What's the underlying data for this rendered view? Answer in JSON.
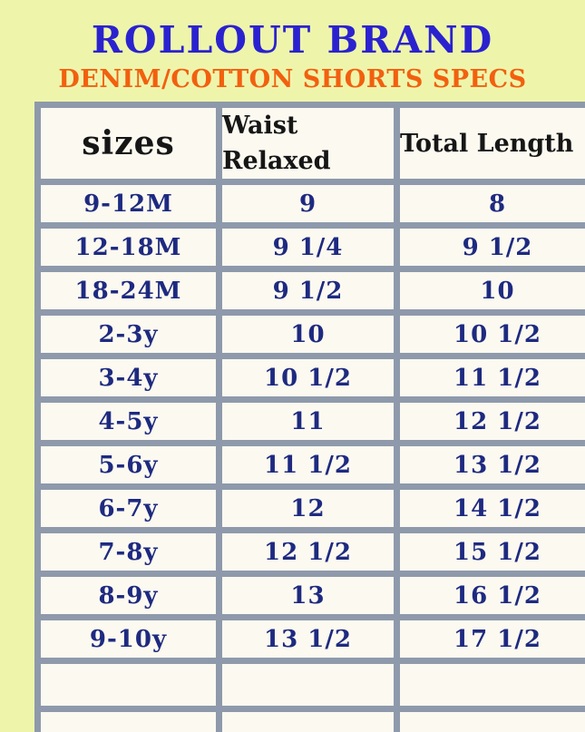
{
  "header": {
    "title": "ROLLOUT BRAND",
    "subtitle": "DENIM/COTTON SHORTS SPECS"
  },
  "colors": {
    "background": "#eef5ab",
    "cell_background": "#fbf9f0",
    "table_border": "#8e99ab",
    "title_blue": "#2b22cf",
    "subtitle_orange": "#f2600f",
    "header_text": "#161616",
    "data_text_navy": "#1e2a80"
  },
  "table": {
    "headers": [
      "sizes",
      "Waist Relaxed",
      "Total Length"
    ],
    "rows": [
      {
        "size": "9-12M",
        "waist": "9",
        "length": "8"
      },
      {
        "size": "12-18M",
        "waist": "9 1/4",
        "length": "9 1/2"
      },
      {
        "size": "18-24M",
        "waist": "9 1/2",
        "length": "10"
      },
      {
        "size": "2-3y",
        "waist": "10",
        "length": "10 1/2"
      },
      {
        "size": "3-4y",
        "waist": "10 1/2",
        "length": "11 1/2"
      },
      {
        "size": "4-5y",
        "waist": "11",
        "length": "12 1/2"
      },
      {
        "size": "5-6y",
        "waist": "11 1/2",
        "length": "13 1/2"
      },
      {
        "size": "6-7y",
        "waist": "12",
        "length": "14 1/2"
      },
      {
        "size": "7-8y",
        "waist": "12 1/2",
        "length": "15 1/2"
      },
      {
        "size": "8-9y",
        "waist": "13",
        "length": "16 1/2"
      },
      {
        "size": "9-10y",
        "waist": "13 1/2",
        "length": "17 1/2"
      },
      {
        "size": "",
        "waist": "",
        "length": ""
      },
      {
        "size": "",
        "waist": "",
        "length": ""
      }
    ]
  }
}
